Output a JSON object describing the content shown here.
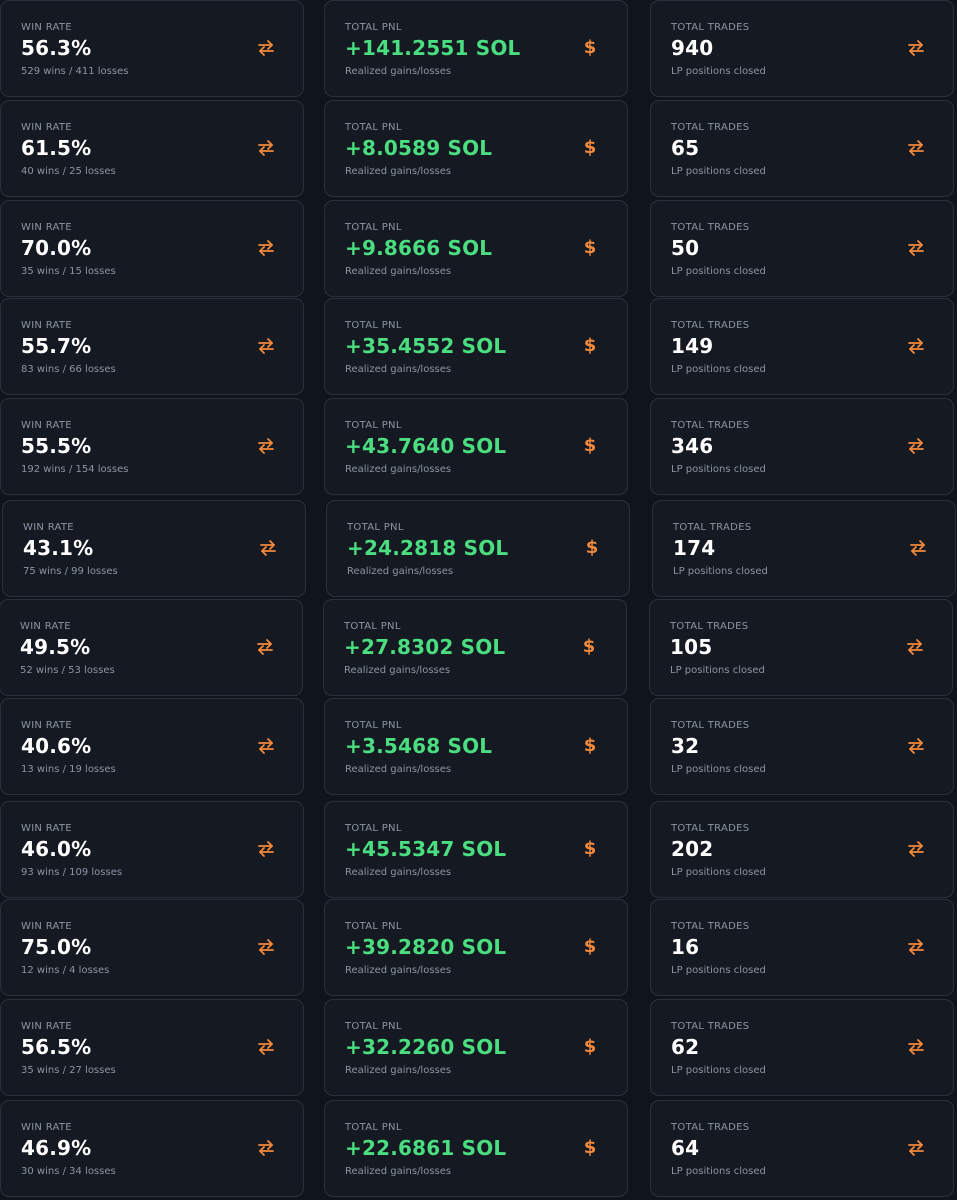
{
  "labels": {
    "win_rate": "WIN RATE",
    "total_pnl": "TOTAL PNL",
    "total_trades": "TOTAL TRADES",
    "pnl_sub": "Realized gains/losses",
    "trades_sub": "LP positions closed"
  },
  "icons": {
    "win_rate": "swap-arrows-icon",
    "total_pnl": "dollar-icon",
    "total_trades": "swap-arrows-icon"
  },
  "colors": {
    "background": "#10141b",
    "card": "#151a22",
    "border": "#2a313c",
    "positive": "#4ade80",
    "accent": "#f5893b",
    "muted": "#8b94a3"
  },
  "rows": [
    {
      "win_rate": "56.3%",
      "record": "529 wins / 411 losses",
      "pnl": "+141.2551 SOL",
      "trades": "940"
    },
    {
      "win_rate": "61.5%",
      "record": "40 wins / 25 losses",
      "pnl": "+8.0589 SOL",
      "trades": "65"
    },
    {
      "win_rate": "70.0%",
      "record": "35 wins / 15 losses",
      "pnl": "+9.8666 SOL",
      "trades": "50"
    },
    {
      "win_rate": "55.7%",
      "record": "83 wins / 66 losses",
      "pnl": "+35.4552 SOL",
      "trades": "149"
    },
    {
      "win_rate": "55.5%",
      "record": "192 wins / 154 losses",
      "pnl": "+43.7640 SOL",
      "trades": "346"
    },
    {
      "win_rate": "43.1%",
      "record": "75 wins / 99 losses",
      "pnl": "+24.2818 SOL",
      "trades": "174"
    },
    {
      "win_rate": "49.5%",
      "record": "52 wins / 53 losses",
      "pnl": "+27.8302 SOL",
      "trades": "105"
    },
    {
      "win_rate": "40.6%",
      "record": "13 wins / 19 losses",
      "pnl": "+3.5468 SOL",
      "trades": "32"
    },
    {
      "win_rate": "46.0%",
      "record": "93 wins / 109 losses",
      "pnl": "+45.5347 SOL",
      "trades": "202"
    },
    {
      "win_rate": "75.0%",
      "record": "12 wins / 4 losses",
      "pnl": "+39.2820 SOL",
      "trades": "16"
    },
    {
      "win_rate": "56.5%",
      "record": "35 wins / 27 losses",
      "pnl": "+32.2260 SOL",
      "trades": "62"
    },
    {
      "win_rate": "46.9%",
      "record": "30 wins / 34 losses",
      "pnl": "+22.6861 SOL",
      "trades": "64"
    }
  ]
}
